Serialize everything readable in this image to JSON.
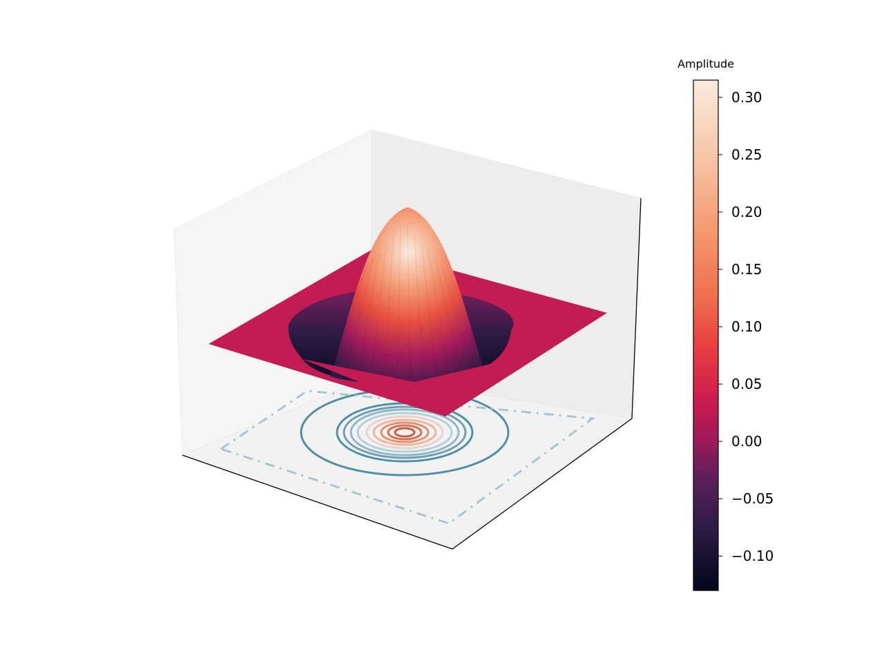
{
  "chart_data": {
    "type": "surface3d",
    "title": "",
    "xlabel": "",
    "ylabel": "",
    "zlabel": "",
    "surface": {
      "function": "mexican-hat",
      "colormap": "rocket",
      "peak_value": 0.32,
      "trough_value": -0.13,
      "plateau_value": 0.0
    },
    "floor_contours": {
      "colormap": "diverging-teal-orange",
      "count": 11
    },
    "colorbar": {
      "label": "Amplitude",
      "range": [
        -0.13,
        0.315
      ],
      "ticks": [
        -0.1,
        -0.05,
        0.0,
        0.05,
        0.1,
        0.15,
        0.2,
        0.25,
        0.3
      ],
      "tick_labels": [
        "−0.10",
        "−0.05",
        "0.00",
        "0.05",
        "0.10",
        "0.15",
        "0.20",
        "0.25",
        "0.30"
      ]
    },
    "axis_tick_labels_visible": false,
    "grid": false,
    "panes": "light-gray"
  }
}
